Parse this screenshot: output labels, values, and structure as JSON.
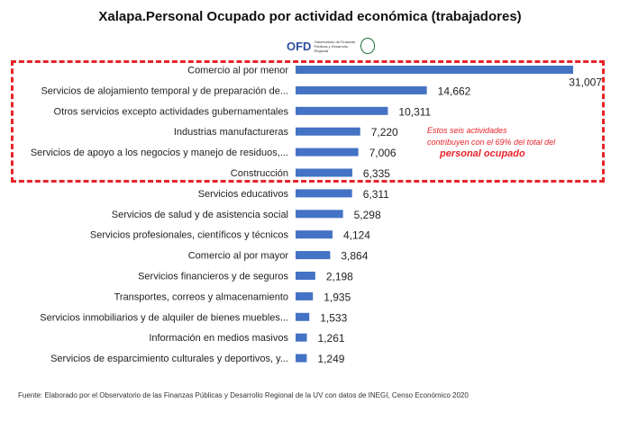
{
  "title": "Xalapa.Personal  Ocupado por actividad  económica (trabajadores)",
  "logo": {
    "mark": "OFD",
    "text": "Observatorio de Finanzas Públicas y Desarrollo Regional"
  },
  "annotation": {
    "line1": "Estos seis actividades",
    "line2": "contribuyen con el 69% del total del",
    "line3": "personal ocupado"
  },
  "source": "Fuente: Elaborado por el Observatorio de las Finanzas Públicas  y Desarrollo Regional de la UV con  datos de INEGI, Censo Económico 2020",
  "colors": {
    "bar": "#4472c4",
    "highlight": "#e8232a"
  },
  "chart_data": {
    "type": "bar",
    "orientation": "horizontal",
    "title": "Xalapa.Personal  Ocupado por actividad  económica (trabajadores)",
    "xlabel": "",
    "ylabel": "",
    "xlim": [
      0,
      31007
    ],
    "grid": false,
    "categories": [
      "Comercio al por menor",
      "Servicios de alojamiento temporal y de preparación de...",
      "Otros servicios excepto actividades gubernamentales",
      "Industrias manufactureras",
      "Servicios de apoyo a los negocios y manejo de residuos,...",
      "Construcción",
      "Servicios educativos",
      "Servicios de salud y de asistencia social",
      "Servicios profesionales, científicos y técnicos",
      "Comercio al por mayor",
      "Servicios financieros y de seguros",
      "Transportes, correos y almacenamiento",
      "Servicios inmobiliarios y de alquiler de bienes muebles...",
      "Información en medios masivos",
      "Servicios de esparcimiento culturales y deportivos, y..."
    ],
    "values": [
      31007,
      14662,
      10311,
      7220,
      7006,
      6335,
      6311,
      5298,
      4124,
      3864,
      2198,
      1935,
      1533,
      1261,
      1249
    ],
    "data_labels": [
      "31,007",
      "14,662",
      "10,311",
      "7,220",
      "7,006",
      "6,335",
      "6,311",
      "5,298",
      "4,124",
      "3,864",
      "2,198",
      "1,935",
      "1,533",
      "1,261",
      "1,249"
    ]
  }
}
